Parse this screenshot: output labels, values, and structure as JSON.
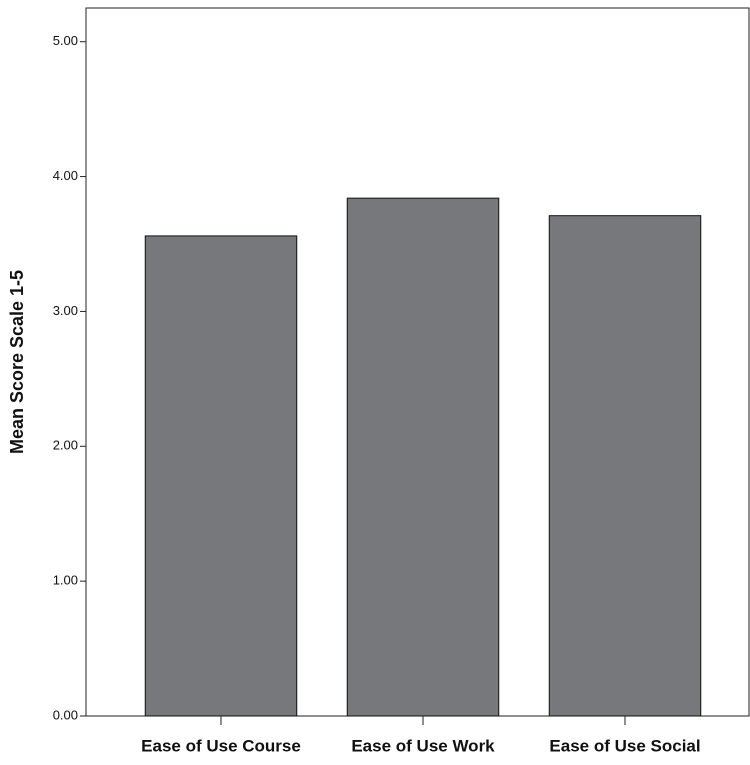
{
  "chart_data": {
    "type": "bar",
    "y_label": "Mean Score Scale 1-5",
    "categories": [
      "Ease of Use Course",
      "Ease of Use Work",
      "Ease of Use Social"
    ],
    "values": [
      3.56,
      3.84,
      3.71
    ],
    "color": "#77787b",
    "ylim": [
      0,
      5.25
    ],
    "yticks": [
      {
        "value": 0,
        "label": "0.00"
      },
      {
        "value": 1,
        "label": "1.00"
      },
      {
        "value": 2,
        "label": "2.00"
      },
      {
        "value": 3,
        "label": "3.00"
      },
      {
        "value": 4,
        "label": "4.00"
      },
      {
        "value": 5,
        "label": "5.00"
      }
    ],
    "grid": false
  }
}
